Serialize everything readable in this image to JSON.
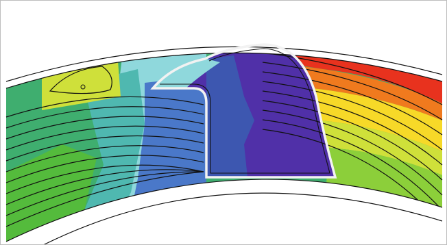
{
  "figure": {
    "subject": "flow-contour",
    "colors": {
      "background": "#ffffff",
      "border": "#bdbdbd",
      "outline": "#111111",
      "highlight": "#f2f2f2",
      "scale": [
        "#e8321e",
        "#f07a1e",
        "#f5a623",
        "#f7d928",
        "#cfe03a",
        "#8ccf3a",
        "#54bb3c",
        "#3fae6f",
        "#4fb8b0",
        "#8fd8dc",
        "#4a78c9",
        "#3d57b0",
        "#5030a8"
      ]
    }
  }
}
